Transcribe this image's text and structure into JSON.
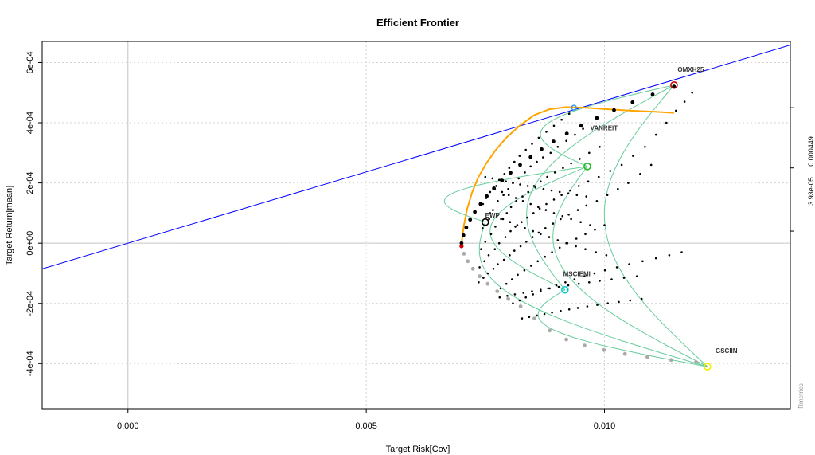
{
  "chart_data": {
    "type": "scatter",
    "title": "Efficient Frontier",
    "xlabel": "Target Risk[Cov]",
    "ylabel": "Target Return[mean]",
    "xlim": [
      -0.0018,
      0.0139
    ],
    "ylim": [
      -0.00055,
      0.00067
    ],
    "x_ticks": [
      0.0,
      0.005,
      0.01
    ],
    "x_tick_labels": [
      "0.000",
      "0.005",
      "0.010"
    ],
    "y_ticks": [
      -0.0004,
      -0.0002,
      0.0,
      0.0002,
      0.0004,
      0.0006
    ],
    "y_tick_labels": [
      "-4e-04",
      "-2e-04",
      "0e+00",
      "2e-04",
      "4e-04",
      "6e-04"
    ],
    "right_axis_labels": [
      "3.93e-05",
      "0.000449"
    ],
    "right_axis_ticks": [
      0.00045,
      0.00025,
      4e-05
    ],
    "watermark": "Rmetrics",
    "grid": true,
    "colors": {
      "frontier_upper": "#000000",
      "frontier_lower": "#aaaaaa",
      "tangency_line": "#0000ff",
      "sharpe_curve": "#ffa500",
      "two_asset_lines": "#66cc99",
      "min_variance": "#cc0000",
      "tangency_point": "#3399ff"
    },
    "tangency_line": {
      "x": [
        -0.0018,
        0.0139
      ],
      "y": [
        -8.52e-05,
        0.000658
      ]
    },
    "efficient_frontier_upper": {
      "x": [
        0.007,
        0.00704,
        0.0071,
        0.00718,
        0.00728,
        0.0074,
        0.00753,
        0.00768,
        0.00785,
        0.00803,
        0.00823,
        0.00845,
        0.00868,
        0.00893,
        0.00921,
        0.00951,
        0.00984,
        0.0102,
        0.01059,
        0.01101,
        0.01146
      ],
      "y": [
        0.0,
        2.6e-05,
        5.2e-05,
        7.8e-05,
        0.000104,
        0.00013,
        0.000156,
        0.000182,
        0.000208,
        0.000234,
        0.00026,
        0.000286,
        0.000312,
        0.000338,
        0.000364,
        0.00039,
        0.000416,
        0.000442,
        0.000468,
        0.000494,
        0.00052
      ]
    },
    "efficient_frontier_lower": {
      "x": [
        0.007,
        0.00705,
        0.00713,
        0.00724,
        0.00738,
        0.00755,
        0.00775,
        0.00798,
        0.00824,
        0.00853,
        0.00885,
        0.0092,
        0.00958,
        0.00999,
        0.01043,
        0.0109,
        0.0114,
        0.01192
      ],
      "y": [
        -1e-05,
        -3.5e-05,
        -6e-05,
        -8.5e-05,
        -0.00011,
        -0.000135,
        -0.00016,
        -0.000185,
        -0.00021,
        -0.00025,
        -0.00029,
        -0.00032,
        -0.00034,
        -0.000355,
        -0.000368,
        -0.000378,
        -0.000388,
        -0.000395
      ]
    },
    "sharpe_ratio_curve": {
      "x": [
        0.007,
        0.00705,
        0.00712,
        0.00722,
        0.00735,
        0.00752,
        0.00772,
        0.00795,
        0.00822,
        0.00852,
        0.00885,
        0.0092,
        0.0096,
        0.01005,
        0.01055,
        0.0111,
        0.01146
      ],
      "y": [
        0.0,
        6e-05,
        0.000115,
        0.000168,
        0.000218,
        0.000265,
        0.00031,
        0.000352,
        0.00039,
        0.000425,
        0.000445,
        0.000452,
        0.00045,
        0.000445,
        0.00044,
        0.000436,
        0.000433
      ]
    },
    "minimum_variance_point": {
      "x": 0.007,
      "y": -1e-05
    },
    "tangency_portfolio": {
      "x": 0.00936,
      "y": 0.00045
    },
    "assets": [
      {
        "name": "OMXH25",
        "x": 0.01146,
        "y": 0.000525,
        "color": "#cc0000",
        "label_dx": 0.00035,
        "label_dy": 4.5e-05
      },
      {
        "name": "VANREIT",
        "x": 0.00964,
        "y": 0.000255,
        "color": "#22bb22",
        "label_dx": 0.00035,
        "label_dy": 0.00012
      },
      {
        "name": "EWP",
        "x": 0.0075,
        "y": 7e-05,
        "color": "#000000",
        "label_dx": 0.00015,
        "label_dy": 1.5e-05
      },
      {
        "name": "MSCIEMI",
        "x": 0.00917,
        "y": -0.000155,
        "color": "#00cccc",
        "label_dx": 0.00025,
        "label_dy": 4.5e-05
      },
      {
        "name": "GSCIIN",
        "x": 0.01216,
        "y": -0.00041,
        "color": "#eeee00",
        "label_dx": 0.0004,
        "label_dy": 4.5e-05
      }
    ],
    "two_asset_frontiers": [
      {
        "from": "OMXH25",
        "to": "VANREIT"
      },
      {
        "from": "OMXH25",
        "to": "MSCIEMI"
      },
      {
        "from": "OMXH25",
        "to": "GSCIIN"
      },
      {
        "from": "VANREIT",
        "to": "MSCIEMI"
      },
      {
        "from": "VANREIT",
        "to": "GSCIIN"
      },
      {
        "from": "MSCIEMI",
        "to": "GSCIIN"
      },
      {
        "from": "EWP",
        "to": "VANREIT"
      },
      {
        "from": "EWP",
        "to": "GSCIIN"
      }
    ],
    "monte_carlo_points": {
      "x": [
        0.00745,
        0.00752,
        0.0076,
        0.00773,
        0.00781,
        0.0079,
        0.008,
        0.00811,
        0.00822,
        0.00835,
        0.00848,
        0.00862,
        0.00878,
        0.00894,
        0.0091,
        0.00926,
        0.00744,
        0.00758,
        0.00766,
        0.00776,
        0.00788,
        0.00798,
        0.00808,
        0.0082,
        0.00833,
        0.00845,
        0.00858,
        0.00871,
        0.00887,
        0.00902,
        0.0092,
        0.00938,
        0.00955,
        0.00741,
        0.0075,
        0.00762,
        0.00771,
        0.00783,
        0.00795,
        0.00804,
        0.00815,
        0.00828,
        0.0084,
        0.00852,
        0.00866,
        0.0088,
        0.00896,
        0.00913,
        0.0093,
        0.00948,
        0.00968,
        0.0099,
        0.00738,
        0.00748,
        0.00757,
        0.0077,
        0.00779,
        0.00792,
        0.00803,
        0.00813,
        0.00826,
        0.00838,
        0.00851,
        0.00864,
        0.00878,
        0.00894,
        0.0091,
        0.00928,
        0.00946,
        0.00966,
        0.00988,
        0.01012,
        0.01036,
        0.0106,
        0.01085,
        0.01108,
        0.0113,
        0.0115,
        0.01168,
        0.01184,
        0.00736,
        0.00746,
        0.00755,
        0.00767,
        0.00776,
        0.00789,
        0.00801,
        0.00811,
        0.00824,
        0.00836,
        0.00849,
        0.00862,
        0.00876,
        0.00892,
        0.00908,
        0.00925,
        0.00944,
        0.00962,
        0.00984,
        0.01006,
        0.01028,
        0.0105,
        0.01075,
        0.01098,
        0.00782,
        0.00794,
        0.00806,
        0.00818,
        0.00832,
        0.00846,
        0.0086,
        0.00875,
        0.0089,
        0.00906,
        0.00922,
        0.00941,
        0.0096,
        0.0098,
        0.01,
        0.00808,
        0.00822,
        0.00835,
        0.0085,
        0.00866,
        0.00882,
        0.00899,
        0.00918,
        0.00937,
        0.00958,
        0.00979,
        0.01001,
        0.01026,
        0.01052,
        0.0108,
        0.01108,
        0.01136,
        0.01162,
        0.0078,
        0.00796,
        0.00812,
        0.0083,
        0.00848,
        0.00866,
        0.00885,
        0.00904,
        0.00924,
        0.00946,
        0.00968,
        0.0099,
        0.01015,
        0.01041,
        0.01068,
        0.00827,
        0.00842,
        0.00858,
        0.00874,
        0.0089,
        0.00908,
        0.00926,
        0.00944,
        0.00964,
        0.00985,
        0.01007,
        0.0103,
        0.01054,
        0.01078,
        0.0076,
        0.00774,
        0.00787,
        0.00802,
        0.00817,
        0.00833,
        0.0085,
        0.00866,
        0.00884,
        0.00902,
        0.0092,
        0.0094,
        0.0096,
        0.00982,
        0.01004,
        0.0077,
        0.00785,
        0.00799,
        0.00814,
        0.00829,
        0.00845,
        0.00861,
        0.00877,
        0.00894,
        0.00912,
        0.0093,
        0.0095,
        0.0097,
        0.0075,
        0.00765,
        0.00779,
        0.00793,
        0.00808,
        0.00823,
        0.00839,
        0.00855,
        0.00872,
        0.00889,
        0.00906,
        0.00924,
        0.00942,
        0.00962
      ],
      "y": [
        0.00013,
        0.00015,
        0.00017,
        0.00019,
        0.00021,
        0.00023,
        0.00025,
        0.00027,
        0.00029,
        0.00031,
        0.00033,
        0.00035,
        0.00037,
        0.00039,
        0.00041,
        0.00043,
        5e-05,
        8e-05,
        0.00011,
        0.00014,
        0.00016,
        0.00018,
        0.0002,
        0.000215,
        0.000235,
        0.000255,
        0.00027,
        0.000285,
        0.0003,
        0.00032,
        0.00034,
        0.00036,
        0.00038,
        -2e-05,
        5e-06,
        3e-05,
        5.5e-05,
        8e-05,
        0.0001,
        0.00012,
        0.00014,
        0.000155,
        0.00017,
        0.00019,
        0.000205,
        0.00022,
        0.000235,
        0.00025,
        0.000265,
        0.00028,
        0.0003,
        0.00032,
        -8e-05,
        -6e-05,
        -4e-05,
        -2e-05,
        0.0,
        2e-05,
        4e-05,
        5.5e-05,
        7e-05,
        8.5e-05,
        0.0001,
        0.000115,
        0.00013,
        0.000145,
        0.00016,
        0.000175,
        0.00019,
        0.000205,
        0.00022,
        0.00024,
        0.00026,
        0.00029,
        0.00032,
        0.00036,
        0.0004,
        0.00044,
        0.00047,
        0.0005,
        -0.00013,
        -0.000115,
        -0.0001,
        -8.5e-05,
        -7e-05,
        -5.5e-05,
        -4e-05,
        -2.5e-05,
        -1e-05,
        5e-06,
        2e-05,
        3.5e-05,
        5e-05,
        6.5e-05,
        8e-05,
        9.5e-05,
        0.00011,
        0.000125,
        0.00014,
        0.00016,
        0.00018,
        0.0002,
        0.00023,
        0.00026,
        -0.00015,
        -0.000135,
        -0.00012,
        -0.000105,
        -9e-05,
        -7.5e-05,
        -6e-05,
        -4.5e-05,
        -3e-05,
        -1.5e-05,
        0.0,
        1.5e-05,
        3e-05,
        4.5e-05,
        6e-05,
        -0.0002,
        -0.00019,
        -0.00018,
        -0.00017,
        -0.00016,
        -0.00015,
        -0.00014,
        -0.00013,
        -0.00012,
        -0.00011,
        -0.0001,
        -9e-05,
        -8e-05,
        -7e-05,
        -6e-05,
        -5e-05,
        -4e-05,
        -3e-05,
        -0.00018,
        -0.000175,
        -0.00017,
        -0.000165,
        -0.00016,
        -0.000155,
        -0.00015,
        -0.000145,
        -0.00014,
        -0.000135,
        -0.00013,
        -0.000125,
        -0.00012,
        -0.000115,
        -0.00011,
        -0.00025,
        -0.000245,
        -0.00024,
        -0.000235,
        -0.00023,
        -0.000225,
        -0.00022,
        -0.000215,
        -0.00021,
        -0.000205,
        -0.0002,
        -0.000195,
        -0.00019,
        -0.000185,
        0.0001,
        9e-05,
        8e-05,
        7e-05,
        6e-05,
        5e-05,
        4e-05,
        3e-05,
        2e-05,
        1e-05,
        0.0,
        -1e-05,
        -2e-05,
        -3e-05,
        -4e-05,
        0.00018,
        0.00017,
        0.00016,
        0.00015,
        0.00014,
        0.00013,
        0.00012,
        0.00011,
        0.0001,
        9e-05,
        8e-05,
        7e-05,
        6e-05,
        0.00022,
        0.000215,
        0.00021,
        0.000205,
        0.0002,
        0.000195,
        0.00019,
        0.000185,
        0.00018,
        0.000175,
        0.00017,
        0.000165,
        0.00016,
        0.000155
      ]
    }
  }
}
